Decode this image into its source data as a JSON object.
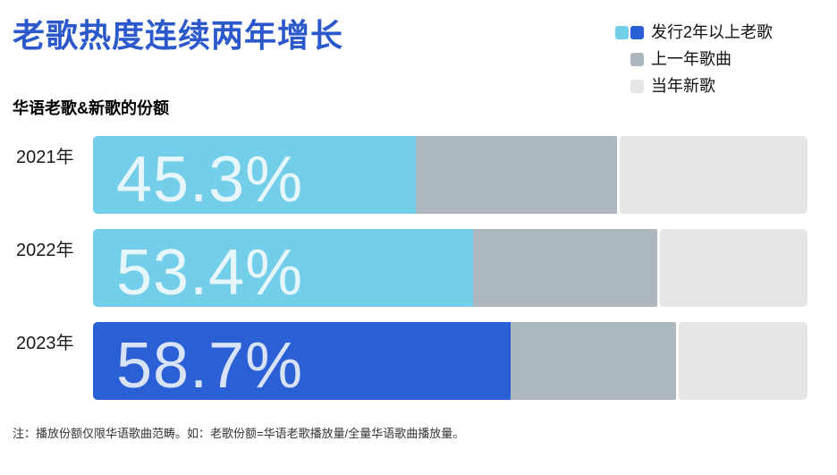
{
  "title": "老歌热度连续两年增长",
  "subtitle": "华语老歌&新歌的份额",
  "footnote": "注：播放份额仅限华语歌曲范畴。如：老歌份额=华语老歌播放量/全量华语歌曲播放量。",
  "colors": {
    "title_blue": "#2B58CB",
    "old_song_light_blue": "#73CEEA",
    "old_song_dark_blue": "#2A5FD6",
    "prev_year_gray": "#ADB8BE",
    "new_song_light_gray": "#E6E6E7",
    "bar_value_text": "rgba(255,255,255,0.82)"
  },
  "legend": {
    "items": [
      {
        "label": "发行2年以上老歌",
        "swatches": [
          "#73CEEA",
          "#2A5FD6"
        ]
      },
      {
        "label": "上一年歌曲",
        "swatches": [
          "#ADB8BE"
        ]
      },
      {
        "label": "当年新歌",
        "swatches": [
          "#E6E6E7"
        ]
      }
    ]
  },
  "chart_data": {
    "type": "bar",
    "orientation": "horizontal",
    "stacked": true,
    "title": "老歌热度连续两年增长",
    "subtitle": "华语老歌&新歌的份额",
    "categories": [
      "2021年",
      "2022年",
      "2023年"
    ],
    "series": [
      {
        "name": "发行2年以上老歌",
        "values": [
          45.3,
          53.4,
          58.7
        ]
      },
      {
        "name": "上一年歌曲",
        "values": [
          28.3,
          25.9,
          23.2
        ]
      },
      {
        "name": "当年新歌",
        "values": [
          26.4,
          20.7,
          18.1
        ]
      }
    ],
    "value_labels": [
      "45.3%",
      "53.4%",
      "58.7%"
    ],
    "xlim": [
      0,
      100
    ],
    "legend_position": "top-right",
    "grid": false,
    "row_colors": [
      [
        "#73CEEA",
        "#ADB8BE",
        "#E6E6E7"
      ],
      [
        "#73CEEA",
        "#ADB8BE",
        "#E6E6E7"
      ],
      [
        "#2A5FD6",
        "#ADB8BE",
        "#E6E6E7"
      ]
    ]
  }
}
